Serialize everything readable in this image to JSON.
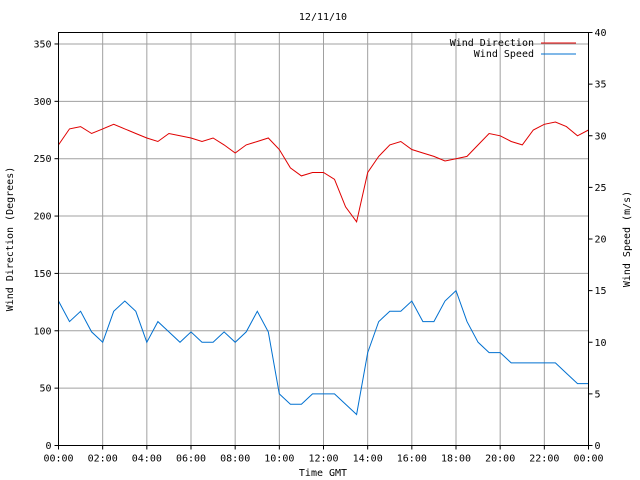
{
  "chart_data": {
    "type": "line",
    "title": "12/11/10",
    "xlabel": "Time GMT",
    "ylabel_left": "Wind Direction (Degrees)",
    "ylabel_right": "Wind Speed (m/s)",
    "x_ticks": [
      "00:00",
      "02:00",
      "04:00",
      "06:00",
      "08:00",
      "10:00",
      "12:00",
      "14:00",
      "16:00",
      "18:00",
      "20:00",
      "22:00",
      "00:00"
    ],
    "x_range_hours": [
      0,
      24
    ],
    "ylim_left": [
      0,
      360
    ],
    "yticks_left": [
      0,
      50,
      100,
      150,
      200,
      250,
      300,
      350
    ],
    "ylim_right": [
      0,
      40
    ],
    "yticks_right": [
      0,
      5,
      10,
      15,
      20,
      25,
      30,
      35,
      40
    ],
    "grid": true,
    "legend_position": "top-right",
    "series": [
      {
        "name": "Wind Direction",
        "axis": "left",
        "color": "#e00000",
        "hours": [
          0,
          0.5,
          1,
          1.5,
          2,
          2.5,
          3,
          3.5,
          4,
          4.5,
          5,
          5.5,
          6,
          6.5,
          7,
          7.5,
          8,
          8.5,
          9,
          9.5,
          10,
          10.5,
          11,
          11.5,
          12,
          12.5,
          13,
          13.5,
          14,
          14.5,
          15,
          15.5,
          16,
          16.5,
          17,
          17.5,
          18,
          18.5,
          19,
          19.5,
          20,
          20.5,
          21,
          21.5,
          22,
          22.5,
          23,
          23.5,
          24
        ],
        "values": [
          262,
          276,
          278,
          272,
          276,
          280,
          276,
          272,
          268,
          265,
          272,
          270,
          268,
          265,
          268,
          262,
          255,
          262,
          265,
          268,
          258,
          242,
          235,
          238,
          238,
          232,
          208,
          195,
          238,
          252,
          262,
          265,
          258,
          255,
          252,
          248,
          250,
          252,
          262,
          272,
          270,
          265,
          262,
          275,
          280,
          282,
          278,
          270,
          275
        ]
      },
      {
        "name": "Wind Speed",
        "axis": "right",
        "color": "#0070d0",
        "hours": [
          0,
          0.5,
          1,
          1.5,
          2,
          2.5,
          3,
          3.5,
          4,
          4.5,
          5,
          5.5,
          6,
          6.5,
          7,
          7.5,
          8,
          8.5,
          9,
          9.5,
          10,
          10.5,
          11,
          11.5,
          12,
          12.5,
          13,
          13.5,
          14,
          14.5,
          15,
          15.5,
          16,
          16.5,
          17,
          17.5,
          18,
          18.5,
          19,
          19.5,
          20,
          20.5,
          21,
          21.5,
          22,
          22.5,
          23,
          23.5,
          24
        ],
        "values": [
          14,
          12,
          13,
          11,
          10,
          13,
          14,
          13,
          10,
          12,
          11,
          10,
          11,
          10,
          10,
          11,
          10,
          11,
          13,
          11,
          5,
          4,
          4,
          5,
          5,
          5,
          4,
          3,
          9,
          12,
          13,
          13,
          14,
          12,
          12,
          14,
          15,
          12,
          10,
          9,
          9,
          8,
          8,
          8,
          8,
          8,
          7,
          6,
          6
        ]
      }
    ]
  }
}
